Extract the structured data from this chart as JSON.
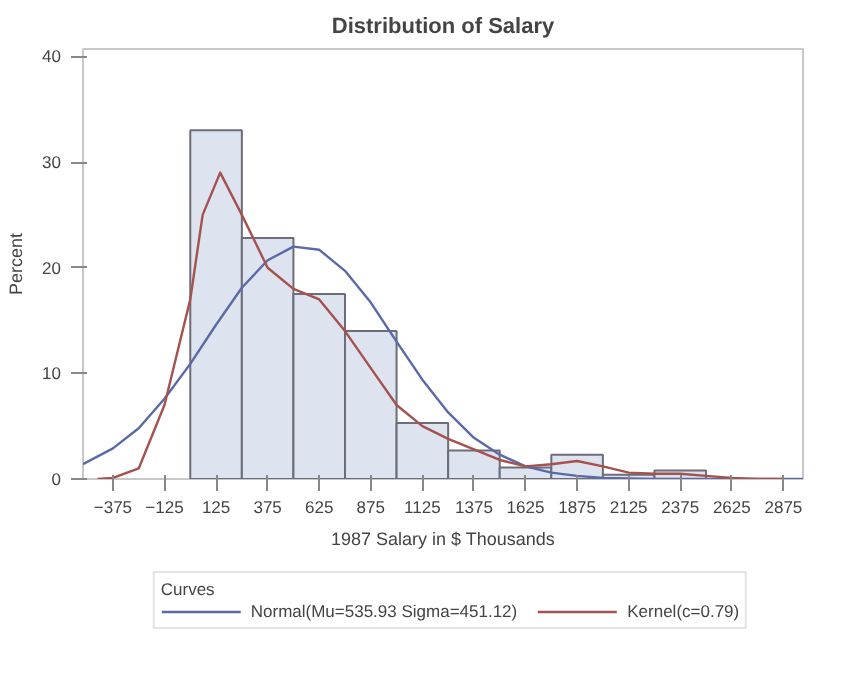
{
  "chart_data": {
    "type": "histogram",
    "title": "Distribution of Salary",
    "xlabel": "1987 Salary in $ Thousands",
    "ylabel": "Percent",
    "legend_title": "Curves",
    "legend": "bottom",
    "grid": false,
    "bins": [
      0,
      250,
      500,
      750,
      1000,
      1250,
      1500,
      1750,
      2000,
      2250,
      2500
    ],
    "series": [
      {
        "color": "#dde3ef",
        "values": [
          33,
          22.8,
          17.5,
          14,
          5.3,
          2.7,
          1.1,
          2.3,
          0.4,
          0.8
        ]
      },
      {
        "type": "line",
        "name": "Normal(Mu=535.93 Sigma=451.12)",
        "color": "#5a6aa8",
        "x": [
          -520,
          -375,
          -250,
          -125,
          0,
          125,
          250,
          375,
          500,
          625,
          750,
          875,
          1000,
          1125,
          1250,
          1375,
          1500,
          1625,
          1750,
          1875,
          2000,
          2250,
          2500,
          2970
        ],
        "values": [
          1.4,
          2.9,
          4.8,
          7.6,
          10.9,
          14.6,
          18.1,
          20.7,
          22,
          21.7,
          19.7,
          16.7,
          13,
          9.4,
          6.3,
          3.9,
          2.3,
          1.2,
          0.6,
          0.3,
          0.1,
          0,
          0,
          0
        ]
      },
      {
        "type": "line",
        "name": "Kernel(c=0.79)",
        "color": "#a5524f",
        "x": [
          -450,
          -375,
          -250,
          -125,
          0,
          60,
          145,
          250,
          375,
          500,
          625,
          750,
          875,
          1000,
          1125,
          1250,
          1375,
          1500,
          1625,
          1750,
          1875,
          2000,
          2125,
          2250,
          2375,
          2500,
          2625,
          2750,
          2875
        ],
        "values": [
          0,
          0.1,
          1,
          7,
          17,
          25,
          29,
          25,
          20,
          18,
          17,
          14,
          10.5,
          7,
          5,
          3.8,
          2.8,
          1.8,
          1.2,
          1.4,
          1.7,
          1.2,
          0.6,
          0.5,
          0.5,
          0.3,
          0.1,
          0,
          0
        ]
      }
    ],
    "xlim": [
      -520,
      2970
    ],
    "ylim": [
      0,
      40.7
    ],
    "xticks": [
      -375,
      -125,
      125,
      375,
      625,
      875,
      1125,
      1375,
      1625,
      1875,
      2125,
      2375,
      2625,
      2875
    ],
    "yticks": [
      0,
      10,
      20,
      30,
      40
    ]
  }
}
